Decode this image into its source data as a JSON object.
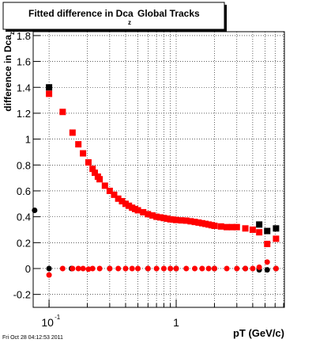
{
  "chart_data": {
    "type": "scatter",
    "title": "Fitted difference in Dca",
    "title_sub": "z",
    "title_rest": "Global Tracks",
    "y_label": "difference in Dca",
    "y_label_sub": "z",
    "x_label": "pT (GeV/c)",
    "footer": "Fri Oct 28 04:12:53 2011",
    "log_x": true,
    "grid": true,
    "xlim": [
      0.075,
      7.1
    ],
    "ylim": [
      -0.3,
      1.83
    ],
    "xticks": [
      {
        "value": 0.1,
        "label": "10",
        "sup": "-1"
      },
      1
    ],
    "x_grid": [
      0.1,
      0.2,
      0.3,
      0.4,
      0.5,
      0.6,
      0.7,
      0.8,
      0.9,
      1,
      2,
      3,
      4,
      5,
      6,
      7
    ],
    "yticks": [
      -0.2,
      0,
      0.2,
      0.4,
      0.6,
      0.8,
      1,
      1.2,
      1.4,
      1.6,
      1.8
    ],
    "series": [
      {
        "color": "#000000",
        "marker": "square",
        "x": [
          0.1,
          4.5,
          5.2,
          6.1
        ],
        "values": [
          1.4,
          0.34,
          0.29,
          0.31
        ]
      },
      {
        "color": "#000000",
        "marker": "circle",
        "x": [
          0.077,
          0.1,
          0.15,
          0.3,
          0.6,
          1.0,
          2.0,
          3.5,
          4.5,
          5.2,
          6.1
        ],
        "values": [
          0.45,
          0.0,
          0.0,
          0.0,
          0.0,
          0.0,
          0.0,
          0.0,
          -0.01,
          -0.01,
          0.0
        ]
      },
      {
        "color": "#ff0000",
        "marker": "square",
        "x": [
          0.1,
          0.128,
          0.153,
          0.17,
          0.185,
          0.204,
          0.22,
          0.229,
          0.242,
          0.25,
          0.275,
          0.3,
          0.325,
          0.35,
          0.375,
          0.4,
          0.425,
          0.45,
          0.475,
          0.5,
          0.55,
          0.6,
          0.65,
          0.7,
          0.75,
          0.8,
          0.85,
          0.9,
          0.95,
          1.0,
          1.1,
          1.2,
          1.3,
          1.4,
          1.5,
          1.6,
          1.7,
          1.8,
          1.9,
          2.0,
          2.25,
          2.5,
          2.75,
          3.0,
          3.5,
          4.0,
          4.5,
          5.2,
          6.1
        ],
        "values": [
          1.35,
          1.21,
          1.05,
          0.96,
          0.89,
          0.82,
          0.77,
          0.74,
          0.71,
          0.69,
          0.64,
          0.6,
          0.57,
          0.54,
          0.52,
          0.5,
          0.485,
          0.47,
          0.46,
          0.45,
          0.435,
          0.42,
          0.41,
          0.4,
          0.395,
          0.39,
          0.385,
          0.38,
          0.378,
          0.375,
          0.372,
          0.37,
          0.365,
          0.36,
          0.355,
          0.35,
          0.345,
          0.34,
          0.335,
          0.33,
          0.325,
          0.32,
          0.32,
          0.32,
          0.31,
          0.3,
          0.28,
          0.19,
          0.23
        ]
      },
      {
        "color": "#ff0000",
        "marker": "circle",
        "x": [
          0.1,
          0.128,
          0.153,
          0.17,
          0.185,
          0.204,
          0.22,
          0.25,
          0.3,
          0.35,
          0.4,
          0.45,
          0.5,
          0.6,
          0.7,
          0.8,
          0.9,
          1.0,
          1.2,
          1.4,
          1.6,
          1.8,
          2.0,
          2.5,
          3.0,
          3.5,
          4.0,
          4.5,
          5.2,
          6.1
        ],
        "values": [
          -0.05,
          0.0,
          0.0,
          0.0,
          0.0,
          -0.005,
          0.0,
          0.0,
          0.0,
          0.0,
          0.0,
          0.0,
          0.0,
          0.0,
          0.0,
          0.0,
          0.0,
          0.0,
          0.0,
          0.0,
          0.0,
          0.0,
          0.0,
          0.0,
          0.0,
          0.0,
          0.0,
          0.01,
          0.05,
          0.0
        ]
      }
    ]
  }
}
